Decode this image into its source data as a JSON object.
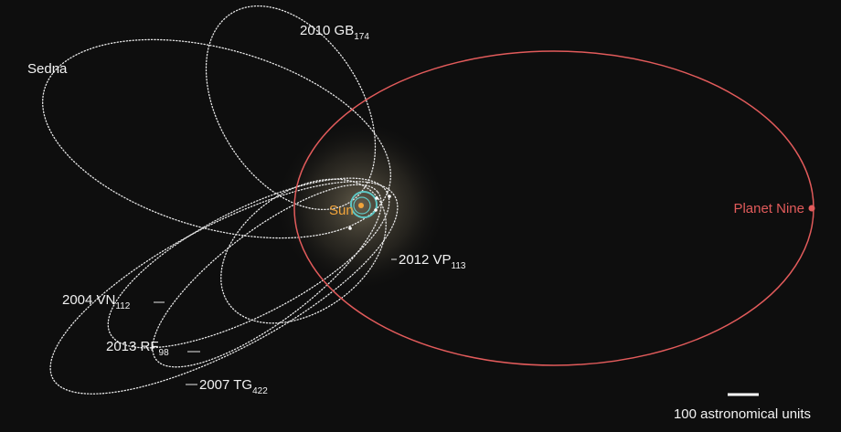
{
  "labels": {
    "sedna": "Sedna",
    "gb174": {
      "name": "2010 GB",
      "sub": "174"
    },
    "vp113": {
      "name": "2012 VP",
      "sub": "113"
    },
    "vn112": {
      "name": "2004 VN",
      "sub": "112"
    },
    "rf98": {
      "name": "2013 RF",
      "sub": "98"
    },
    "tg422": {
      "name": "2007 TG",
      "sub": "422"
    },
    "sun": "Sun",
    "planet_nine": "Planet Nine"
  },
  "scale_bar": "100 astronomical units"
}
